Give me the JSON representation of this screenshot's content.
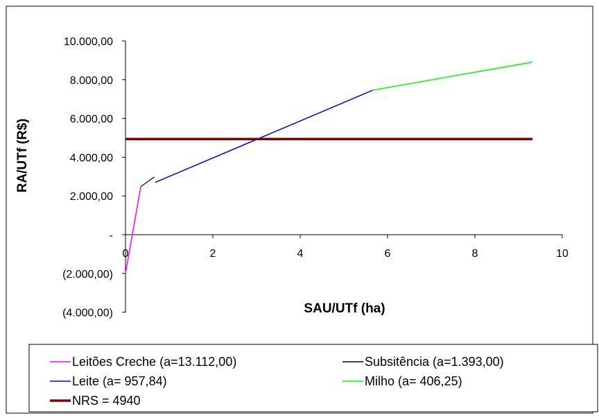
{
  "chart_data": {
    "type": "line",
    "xlabel": "SAU/UTf (ha)",
    "ylabel": "RA/UTf (R$)",
    "xlim": [
      0,
      10
    ],
    "ylim": [
      -4000,
      10000
    ],
    "x_ticks": [
      {
        "value": 0,
        "label": "0"
      },
      {
        "value": 2,
        "label": "2"
      },
      {
        "value": 4,
        "label": "4"
      },
      {
        "value": 6,
        "label": "6"
      },
      {
        "value": 8,
        "label": "8"
      },
      {
        "value": 10,
        "label": "10"
      }
    ],
    "y_ticks": [
      {
        "value": 10000,
        "label": "10.000,00"
      },
      {
        "value": 8000,
        "label": "8.000,00"
      },
      {
        "value": 6000,
        "label": "6.000,00"
      },
      {
        "value": 4000,
        "label": "4.000,00"
      },
      {
        "value": 2000,
        "label": "2.000,00"
      },
      {
        "value": 0,
        "label": "-"
      },
      {
        "value": -2000,
        "label": "(2.000,00)"
      },
      {
        "value": -4000,
        "label": "(4.000,00)"
      }
    ],
    "grid": false,
    "legend_position": "bottom",
    "series": [
      {
        "name": "Leitões Creche (a=13.112,00)",
        "color": "#ff00ff",
        "width": 1.5,
        "points": [
          [
            0.0,
            -2000
          ],
          [
            0.35,
            2480
          ]
        ]
      },
      {
        "name": "Subsitência (a=1.393,00)",
        "color": "#000000",
        "width": 1.2,
        "points": [
          [
            0.35,
            2480
          ],
          [
            0.66,
            2980
          ]
        ]
      },
      {
        "name": "Leite (a= 957,84)",
        "color": "#0000ff",
        "width": 1.5,
        "points": [
          [
            0.68,
            2700
          ],
          [
            5.66,
            7460
          ]
        ]
      },
      {
        "name": "Milho (a= 406,25)",
        "color": "#00ff00",
        "width": 1.5,
        "points": [
          [
            5.66,
            7460
          ],
          [
            9.32,
            8910
          ]
        ]
      },
      {
        "name": "NRS = 4940",
        "color": "#800000",
        "width": 3.5,
        "points": [
          [
            0.0,
            4940
          ],
          [
            9.32,
            4940
          ]
        ]
      }
    ]
  }
}
